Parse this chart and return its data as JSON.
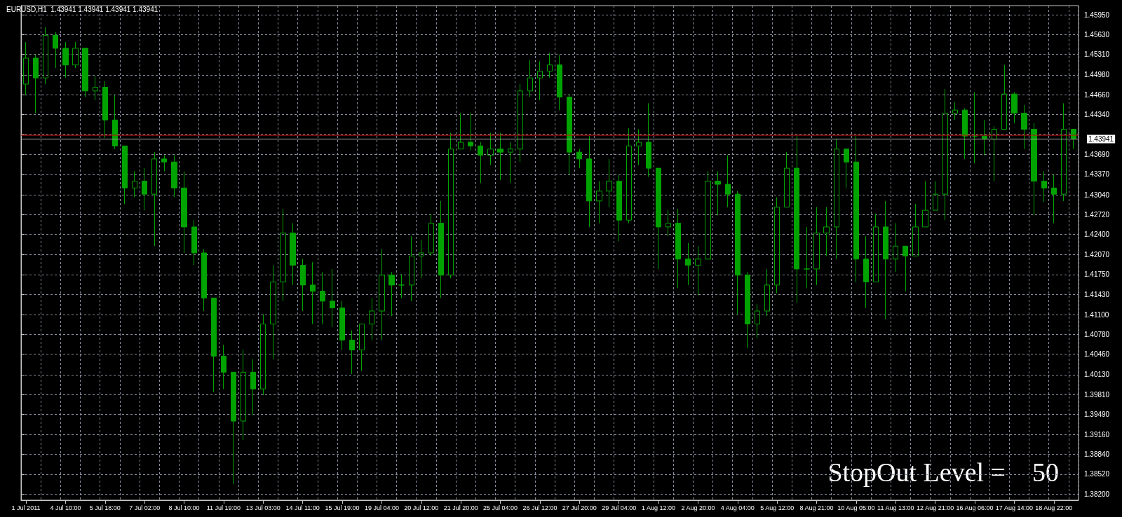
{
  "chart_data": {
    "type": "candlestick",
    "title": "EURUSD,H1  1.43941 1.43941 1.43941 1.43941",
    "annotations": [
      "StopOut Level =    50"
    ],
    "color": "#00a300",
    "grid": true,
    "categories": [
      "1 Jul 2011",
      null,
      null,
      null,
      "4 Jul 10:00",
      null,
      null,
      null,
      "5 Jul 18:00",
      null,
      null,
      null,
      "7 Jul 02:00",
      null,
      null,
      null,
      "8 Jul 10:00",
      null,
      null,
      null,
      "11 Jul 19:00",
      null,
      null,
      null,
      "13 Jul 03:00",
      null,
      null,
      null,
      "14 Jul 11:00",
      null,
      null,
      null,
      "15 Jul 19:00",
      null,
      null,
      null,
      "19 Jul 04:00",
      null,
      null,
      null,
      "20 Jul 12:00",
      null,
      null,
      null,
      "21 Jul 20:00",
      null,
      null,
      null,
      "25 Jul 04:00",
      null,
      null,
      null,
      "26 Jul 12:00",
      null,
      null,
      null,
      "27 Jul 20:00",
      null,
      null,
      null,
      "29 Jul 04:00",
      null,
      null,
      null,
      "1 Aug 12:00",
      null,
      null,
      null,
      "2 Aug 20:00",
      null,
      null,
      null,
      "4 Aug 04:00",
      null,
      null,
      null,
      "5 Aug 12:00",
      null,
      null,
      null,
      "8 Aug 21:00",
      null,
      null,
      null,
      "10 Aug 05:00",
      null,
      null,
      null,
      "11 Aug 13:00",
      null,
      null,
      null,
      "12 Aug 21:00",
      null,
      null,
      null,
      "16 Aug 06:00",
      null,
      null,
      null,
      "17 Aug 14:00",
      null,
      null,
      null,
      "18 Aug 22:00",
      null,
      null
    ],
    "ohlc": [
      [
        1.4483,
        1.4551,
        1.4465,
        1.4525
      ],
      [
        1.4525,
        1.453,
        1.4436,
        1.4493
      ],
      [
        1.4493,
        1.4575,
        1.4483,
        1.4562
      ],
      [
        1.4562,
        1.4567,
        1.4509,
        1.4541
      ],
      [
        1.4541,
        1.4551,
        1.4493,
        1.4514
      ],
      [
        1.4514,
        1.4551,
        1.4509,
        1.4541
      ],
      [
        1.4541,
        1.4541,
        1.4462,
        1.4472
      ],
      [
        1.4472,
        1.4496,
        1.4457,
        1.4478
      ],
      [
        1.4478,
        1.4488,
        1.4396,
        1.4425
      ],
      [
        1.4425,
        1.4465,
        1.4378,
        1.4383
      ],
      [
        1.4383,
        1.4383,
        1.4289,
        1.4315
      ],
      [
        1.4315,
        1.4342,
        1.43,
        1.4326
      ],
      [
        1.4326,
        1.4347,
        1.4279,
        1.4305
      ],
      [
        1.4305,
        1.4373,
        1.4221,
        1.4362
      ],
      [
        1.4362,
        1.4368,
        1.4342,
        1.4357
      ],
      [
        1.4357,
        1.4368,
        1.43,
        1.4315
      ],
      [
        1.4315,
        1.4342,
        1.421,
        1.4252
      ],
      [
        1.4252,
        1.4263,
        1.419,
        1.421
      ],
      [
        1.421,
        1.4216,
        1.4116,
        1.4137
      ],
      [
        1.4137,
        1.4137,
        1.3985,
        1.4043
      ],
      [
        1.4043,
        1.4061,
        1.399,
        1.4017
      ],
      [
        1.4017,
        1.4017,
        1.3836,
        1.3938
      ],
      [
        1.3938,
        1.4053,
        1.3907,
        1.4017
      ],
      [
        1.4017,
        1.4038,
        1.3948,
        1.399
      ],
      [
        1.399,
        1.4111,
        1.398,
        1.4095
      ],
      [
        1.4095,
        1.419,
        1.4038,
        1.4163
      ],
      [
        1.4163,
        1.4281,
        1.4132,
        1.4242
      ],
      [
        1.4242,
        1.4258,
        1.4158,
        1.419
      ],
      [
        1.419,
        1.42,
        1.4116,
        1.4158
      ],
      [
        1.4158,
        1.4195,
        1.4095,
        1.4148
      ],
      [
        1.4148,
        1.4179,
        1.4095,
        1.4132
      ],
      [
        1.4132,
        1.4184,
        1.409,
        1.4121
      ],
      [
        1.4121,
        1.4132,
        1.4053,
        1.4069
      ],
      [
        1.4069,
        1.4085,
        1.4014,
        1.4053
      ],
      [
        1.4053,
        1.4095,
        1.4019,
        1.4095
      ],
      [
        1.4095,
        1.4137,
        1.4069,
        1.4116
      ],
      [
        1.4116,
        1.4216,
        1.4069,
        1.4174
      ],
      [
        1.4174,
        1.4179,
        1.4108,
        1.4158
      ],
      [
        1.4158,
        1.4176,
        1.4137,
        1.4158
      ],
      [
        1.4158,
        1.4237,
        1.4132,
        1.4205
      ],
      [
        1.4205,
        1.4231,
        1.4169,
        1.421
      ],
      [
        1.421,
        1.4273,
        1.4205,
        1.4258
      ],
      [
        1.4258,
        1.4294,
        1.4137,
        1.4174
      ],
      [
        1.4174,
        1.4404,
        1.4169,
        1.4378
      ],
      [
        1.4378,
        1.4436,
        1.4378,
        1.4389
      ],
      [
        1.4389,
        1.4436,
        1.4376,
        1.4383
      ],
      [
        1.4383,
        1.4389,
        1.4323,
        1.4368
      ],
      [
        1.4368,
        1.4404,
        1.4352,
        1.4378
      ],
      [
        1.4378,
        1.4404,
        1.4328,
        1.4373
      ],
      [
        1.4373,
        1.4389,
        1.4323,
        1.4378
      ],
      [
        1.4378,
        1.4483,
        1.4357,
        1.4472
      ],
      [
        1.4472,
        1.4522,
        1.4462,
        1.4493
      ],
      [
        1.4493,
        1.452,
        1.4457,
        1.4504
      ],
      [
        1.4504,
        1.4533,
        1.4493,
        1.4514
      ],
      [
        1.4514,
        1.453,
        1.4441,
        1.4462
      ],
      [
        1.4462,
        1.4467,
        1.4336,
        1.4373
      ],
      [
        1.4373,
        1.4378,
        1.4347,
        1.4362
      ],
      [
        1.4362,
        1.4399,
        1.4252,
        1.4294
      ],
      [
        1.4294,
        1.4326,
        1.4258,
        1.431
      ],
      [
        1.431,
        1.4362,
        1.4284,
        1.4326
      ],
      [
        1.4326,
        1.4336,
        1.4229,
        1.4263
      ],
      [
        1.4263,
        1.4412,
        1.4258,
        1.4383
      ],
      [
        1.4383,
        1.441,
        1.4352,
        1.4389
      ],
      [
        1.4389,
        1.4452,
        1.4333,
        1.4347
      ],
      [
        1.4347,
        1.4347,
        1.4184,
        1.4252
      ],
      [
        1.4252,
        1.4279,
        1.4237,
        1.4258
      ],
      [
        1.4258,
        1.4281,
        1.4153,
        1.42
      ],
      [
        1.42,
        1.4226,
        1.4158,
        1.419
      ],
      [
        1.419,
        1.4221,
        1.4142,
        1.42
      ],
      [
        1.42,
        1.4342,
        1.42,
        1.4326
      ],
      [
        1.4326,
        1.4342,
        1.4271,
        1.4321
      ],
      [
        1.4321,
        1.4368,
        1.4284,
        1.4305
      ],
      [
        1.4305,
        1.431,
        1.4111,
        1.4174
      ],
      [
        1.4174,
        1.4179,
        1.4056,
        1.4095
      ],
      [
        1.4095,
        1.4127,
        1.4072,
        1.4116
      ],
      [
        1.4116,
        1.4184,
        1.4108,
        1.4158
      ],
      [
        1.4158,
        1.43,
        1.4145,
        1.4284
      ],
      [
        1.4284,
        1.4373,
        1.4284,
        1.4347
      ],
      [
        1.4347,
        1.4399,
        1.4129,
        1.4184
      ],
      [
        1.4184,
        1.4252,
        1.4153,
        1.4184
      ],
      [
        1.4184,
        1.4284,
        1.4158,
        1.4242
      ],
      [
        1.4242,
        1.4284,
        1.4205,
        1.4252
      ],
      [
        1.4252,
        1.4394,
        1.42,
        1.4378
      ],
      [
        1.4378,
        1.4378,
        1.4315,
        1.4357
      ],
      [
        1.4357,
        1.4399,
        1.4163,
        1.42
      ],
      [
        1.42,
        1.4237,
        1.4121,
        1.4163
      ],
      [
        1.4163,
        1.4273,
        1.4163,
        1.4252
      ],
      [
        1.4252,
        1.4294,
        1.4103,
        1.42
      ],
      [
        1.42,
        1.4258,
        1.4179,
        1.4221
      ],
      [
        1.4221,
        1.4221,
        1.4148,
        1.4205
      ],
      [
        1.4205,
        1.4289,
        1.4205,
        1.4252
      ],
      [
        1.4252,
        1.4326,
        1.4252,
        1.4279
      ],
      [
        1.4279,
        1.4326,
        1.4279,
        1.4305
      ],
      [
        1.4305,
        1.4475,
        1.4263,
        1.4436
      ],
      [
        1.4436,
        1.4454,
        1.4425,
        1.4441
      ],
      [
        1.4441,
        1.4444,
        1.4362,
        1.4399
      ],
      [
        1.4399,
        1.447,
        1.4355,
        1.4399
      ],
      [
        1.4399,
        1.4425,
        1.4368,
        1.4394
      ],
      [
        1.4394,
        1.4415,
        1.4326,
        1.441
      ],
      [
        1.441,
        1.4514,
        1.441,
        1.4467
      ],
      [
        1.4467,
        1.447,
        1.442,
        1.4436
      ],
      [
        1.4436,
        1.4449,
        1.4378,
        1.441
      ],
      [
        1.441,
        1.442,
        1.4271,
        1.4326
      ],
      [
        1.4326,
        1.4342,
        1.4292,
        1.4315
      ],
      [
        1.4315,
        1.4336,
        1.4258,
        1.4305
      ],
      [
        1.4305,
        1.4452,
        1.4294,
        1.441
      ],
      [
        1.441,
        1.441,
        1.4378,
        1.43941
      ]
    ],
    "ylim": [
      1.381,
      1.461
    ],
    "yticks": [
      {
        "value": 1.382,
        "label": "1.38200"
      },
      {
        "value": 1.3852,
        "label": "1.38520"
      },
      {
        "value": 1.3884,
        "label": "1.38840"
      },
      {
        "value": 1.3916,
        "label": "1.39160"
      },
      {
        "value": 1.3949,
        "label": "1.39490"
      },
      {
        "value": 1.3981,
        "label": "1.39810"
      },
      {
        "value": 1.4013,
        "label": "1.40130"
      },
      {
        "value": 1.4046,
        "label": "1.40460"
      },
      {
        "value": 1.4078,
        "label": "1.40780"
      },
      {
        "value": 1.411,
        "label": "1.41100"
      },
      {
        "value": 1.4143,
        "label": "1.41430"
      },
      {
        "value": 1.4175,
        "label": "1.41750"
      },
      {
        "value": 1.4207,
        "label": "1.42070"
      },
      {
        "value": 1.424,
        "label": "1.42400"
      },
      {
        "value": 1.4272,
        "label": "1.42720"
      },
      {
        "value": 1.4304,
        "label": "1.43040"
      },
      {
        "value": 1.4337,
        "label": "1.43370"
      },
      {
        "value": 1.4369,
        "label": "1.43690"
      },
      {
        "value": 1.4402,
        "label": null
      },
      {
        "value": 1.4434,
        "label": "1.44340"
      },
      {
        "value": 1.4466,
        "label": "1.44660"
      },
      {
        "value": 1.4498,
        "label": "1.44980"
      },
      {
        "value": 1.4531,
        "label": "1.45310"
      },
      {
        "value": 1.4563,
        "label": "1.45630"
      },
      {
        "value": 1.4595,
        "label": "1.45950"
      }
    ],
    "ref_lines": [
      {
        "axis": "y",
        "value": 1.44003,
        "color": "#d01010"
      },
      {
        "axis": "y",
        "value": 1.43941,
        "label": "1.43941",
        "color": "#b0b0b0"
      }
    ]
  }
}
